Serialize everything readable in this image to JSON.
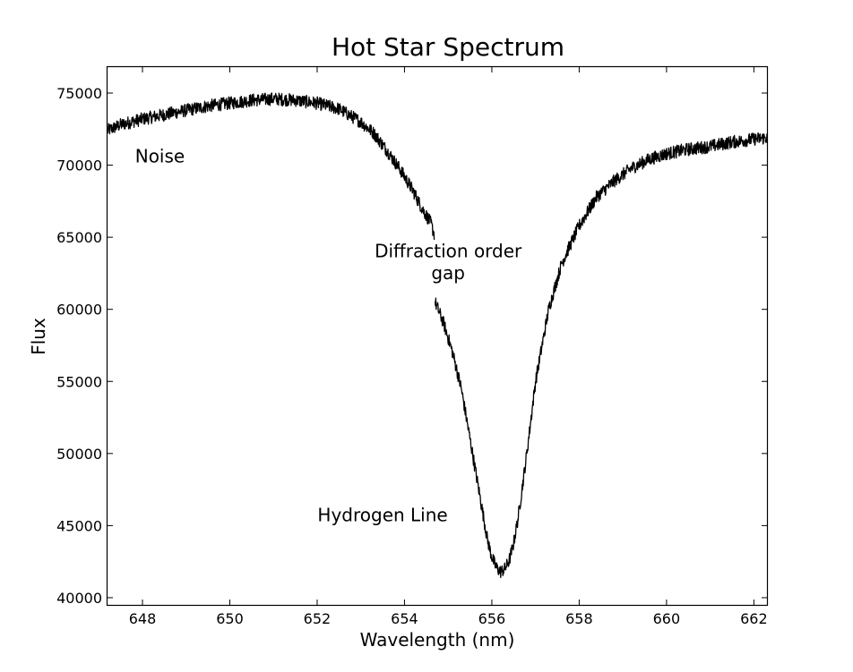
{
  "chart_data": {
    "type": "line",
    "title": "Hot Star Spectrum",
    "xlabel": "Wavelength (nm)",
    "ylabel": "Flux",
    "xlim": [
      647.2,
      662.3
    ],
    "ylim": [
      39500,
      76800
    ],
    "grid": false,
    "x_ticks": [
      648,
      650,
      652,
      654,
      656,
      658,
      660,
      662
    ],
    "y_ticks": [
      40000,
      45000,
      50000,
      55000,
      60000,
      65000,
      70000,
      75000
    ],
    "series": [
      {
        "segment": 1,
        "x": [
          647.2,
          647.5,
          648.0,
          648.5,
          649.0,
          649.5,
          650.0,
          650.5,
          651.0,
          651.5,
          652.0,
          652.5,
          653.0,
          653.3,
          653.6,
          653.9,
          654.2,
          654.4,
          654.6,
          654.68
        ],
        "y": [
          72400,
          72800,
          73200,
          73500,
          73800,
          74100,
          74300,
          74500,
          74600,
          74500,
          74300,
          73900,
          73000,
          72200,
          71000,
          69700,
          68200,
          67000,
          66000,
          65200
        ]
      },
      {
        "segment": 2,
        "x": [
          654.7,
          654.9,
          655.1,
          655.3,
          655.5,
          655.7,
          655.9,
          656.0,
          656.1,
          656.2,
          656.3,
          656.4,
          656.5,
          656.6,
          656.8,
          657.0,
          657.3,
          657.6,
          658.0,
          658.4,
          658.8,
          659.2,
          659.6,
          660.0,
          660.5,
          661.0,
          661.5,
          662.0,
          662.3
        ],
        "y": [
          60500,
          59000,
          57000,
          54500,
          51000,
          47500,
          44000,
          42800,
          42100,
          41800,
          42000,
          42600,
          43800,
          45500,
          50000,
          55000,
          60000,
          63200,
          65800,
          67800,
          68900,
          69800,
          70400,
          70800,
          71100,
          71300,
          71600,
          71800,
          71900
        ]
      }
    ],
    "annotations": [
      {
        "text": "Noise",
        "x": 648.4,
        "y": 70200
      },
      {
        "text": "Diffraction order",
        "x": 655.0,
        "y": 63600
      },
      {
        "text": "gap",
        "x": 655.0,
        "y": 62100
      },
      {
        "text": "Hydrogen Line",
        "x": 653.5,
        "y": 45300
      }
    ]
  }
}
